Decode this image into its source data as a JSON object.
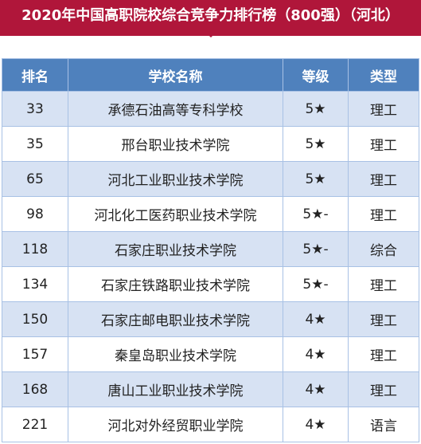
{
  "page_title": "2020年中国高职院校综合竞争力排行榜（800强）（河北）",
  "table": {
    "headers": {
      "rank": "排名",
      "school": "学校名称",
      "grade": "等级",
      "type": "类型"
    },
    "rows": [
      {
        "rank": "33",
        "school": "承德石油高等专科学校",
        "grade": "5★",
        "type": "理工"
      },
      {
        "rank": "35",
        "school": "邢台职业技术学院",
        "grade": "5★",
        "type": "理工"
      },
      {
        "rank": "65",
        "school": "河北工业职业技术学院",
        "grade": "5★",
        "type": "理工"
      },
      {
        "rank": "98",
        "school": "河北化工医药职业技术学院",
        "grade": "5★-",
        "type": "理工"
      },
      {
        "rank": "118",
        "school": "石家庄职业技术学院",
        "grade": "5★-",
        "type": "综合"
      },
      {
        "rank": "134",
        "school": "石家庄铁路职业技术学院",
        "grade": "5★-",
        "type": "理工"
      },
      {
        "rank": "150",
        "school": "石家庄邮电职业技术学院",
        "grade": "4★",
        "type": "理工"
      },
      {
        "rank": "157",
        "school": "秦皇岛职业技术学院",
        "grade": "4★",
        "type": "理工"
      },
      {
        "rank": "168",
        "school": "唐山工业职业技术学院",
        "grade": "4★",
        "type": "理工"
      },
      {
        "rank": "221",
        "school": "河北对外经贸职业学院",
        "grade": "4★",
        "type": "语言"
      }
    ]
  },
  "colors": {
    "banner": "#b0163a",
    "header": "#4f81bd",
    "stripe": "#d7e2f3",
    "border": "#a8c1e5"
  }
}
